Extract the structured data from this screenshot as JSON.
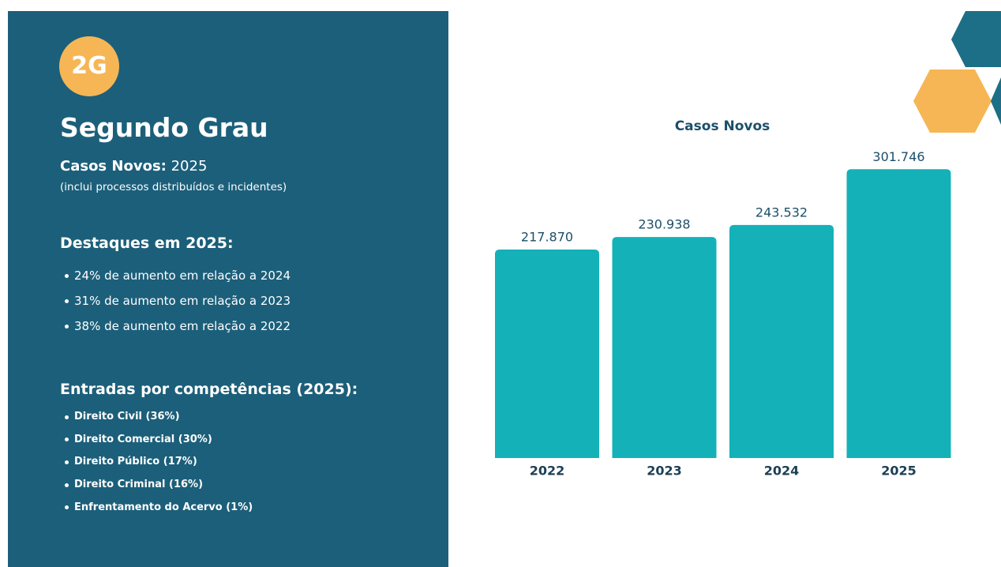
{
  "panel": {
    "badge": "2G",
    "title": "Segundo Grau",
    "subtitle_label": "Casos Novos:",
    "subtitle_value": "2025",
    "note": "(inclui processos distribuídos e incidentes)",
    "highlights": {
      "title": "Destaques em 2025:",
      "items": [
        "24% de aumento em relação a 2024",
        "31% de aumento em relação a 2023",
        "38% de aumento em relação a 2022"
      ]
    },
    "entries": {
      "title": "Entradas por competências (2025):",
      "items": [
        "Direito Civil (36%)",
        "Direito Comercial (30%)",
        "Direito Público (17%)",
        "Direito Criminal (16%)",
        "Enfrentamento do Acervo (1%)"
      ]
    }
  },
  "chart_data": {
    "type": "bar",
    "title": "Casos Novos",
    "categories": [
      "2022",
      "2023",
      "2024",
      "2025"
    ],
    "values": [
      217870,
      230938,
      243532,
      301746
    ],
    "value_labels": [
      "217.870",
      "230.938",
      "243.532",
      "301.746"
    ],
    "color": "#14b1b8"
  }
}
